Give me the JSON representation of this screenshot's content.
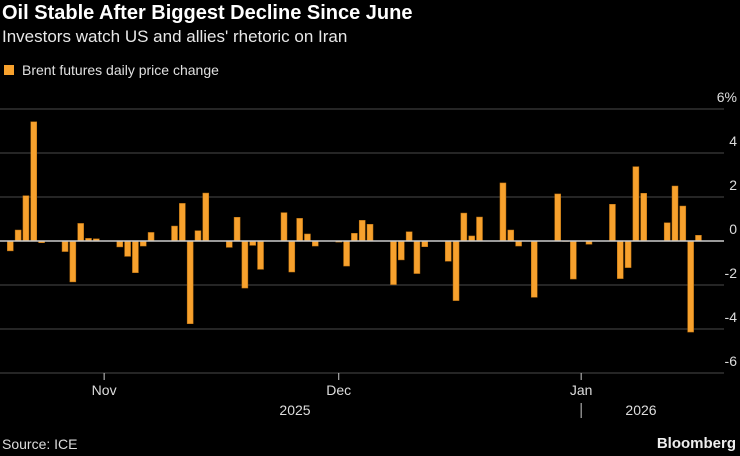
{
  "header": {
    "title": "Oil Stable After Biggest Decline Since June",
    "subtitle": "Investors watch US and allies' rhetoric on Iran"
  },
  "footer": {
    "source": "Source: ICE",
    "brand": "Bloomberg"
  },
  "colors": {
    "bar": "#f7a12d",
    "background": "#000000",
    "grid": "#4a4a4a",
    "zero_line": "#cccccc"
  },
  "chart_data": {
    "type": "bar",
    "title": "Oil Stable After Biggest Decline Since June",
    "subtitle": "Investors watch US and allies' rhetoric on Iran",
    "legend": {
      "position": "top-left",
      "entries": [
        "Brent futures daily price change"
      ]
    },
    "series": [
      {
        "name": "Brent futures daily price change",
        "points": [
          [
            "2025-10-20",
            -0.45
          ],
          [
            "2025-10-21",
            0.5
          ],
          [
            "2025-10-22",
            2.06
          ],
          [
            "2025-10-23",
            5.42
          ],
          [
            "2025-10-24",
            -0.08
          ],
          [
            "2025-10-27",
            -0.48
          ],
          [
            "2025-10-28",
            -1.86
          ],
          [
            "2025-10-29",
            0.8
          ],
          [
            "2025-10-30",
            0.12
          ],
          [
            "2025-10-31",
            0.1
          ],
          [
            "2025-11-03",
            -0.27
          ],
          [
            "2025-11-04",
            -0.7
          ],
          [
            "2025-11-05",
            -1.44
          ],
          [
            "2025-11-06",
            -0.23
          ],
          [
            "2025-11-07",
            0.39
          ],
          [
            "2025-11-10",
            0.68
          ],
          [
            "2025-11-11",
            1.71
          ],
          [
            "2025-11-12",
            -3.76
          ],
          [
            "2025-11-13",
            0.47
          ],
          [
            "2025-11-14",
            2.18
          ],
          [
            "2025-11-17",
            -0.29
          ],
          [
            "2025-11-18",
            1.08
          ],
          [
            "2025-11-19",
            -2.14
          ],
          [
            "2025-11-20",
            -0.2
          ],
          [
            "2025-11-21",
            -1.29
          ],
          [
            "2025-11-24",
            1.29
          ],
          [
            "2025-11-25",
            -1.41
          ],
          [
            "2025-11-26",
            1.03
          ],
          [
            "2025-11-27",
            0.32
          ],
          [
            "2025-11-28",
            -0.23
          ],
          [
            "2025-12-01",
            -0.05
          ],
          [
            "2025-12-02",
            -1.14
          ],
          [
            "2025-12-03",
            0.35
          ],
          [
            "2025-12-04",
            0.94
          ],
          [
            "2025-12-05",
            0.76
          ],
          [
            "2025-12-08",
            -1.98
          ],
          [
            "2025-12-09",
            -0.86
          ],
          [
            "2025-12-10",
            0.42
          ],
          [
            "2025-12-11",
            -1.48
          ],
          [
            "2025-12-12",
            -0.26
          ],
          [
            "2025-12-15",
            -0.92
          ],
          [
            "2025-12-16",
            -2.71
          ],
          [
            "2025-12-17",
            1.27
          ],
          [
            "2025-12-18",
            0.23
          ],
          [
            "2025-12-19",
            1.09
          ],
          [
            "2025-12-22",
            2.64
          ],
          [
            "2025-12-23",
            0.5
          ],
          [
            "2025-12-24",
            -0.23
          ],
          [
            "2025-12-26",
            -2.56
          ],
          [
            "2025-12-29",
            2.14
          ],
          [
            "2025-12-30",
            0.0
          ],
          [
            "2025-12-31",
            -1.73
          ],
          [
            "2026-01-02",
            -0.15
          ],
          [
            "2026-01-05",
            1.67
          ],
          [
            "2026-01-06",
            -1.71
          ],
          [
            "2026-01-07",
            -1.21
          ],
          [
            "2026-01-08",
            3.38
          ],
          [
            "2026-01-09",
            2.17
          ],
          [
            "2026-01-12",
            0.83
          ],
          [
            "2026-01-13",
            2.5
          ],
          [
            "2026-01-14",
            1.59
          ],
          [
            "2026-01-15",
            -4.14
          ],
          [
            "2026-01-16",
            0.26
          ]
        ]
      }
    ],
    "ylim": [
      -6,
      6
    ],
    "yticks": [
      "6%",
      "4",
      "2",
      "0",
      "-2",
      "-4",
      "-6"
    ],
    "ytick_values": [
      6,
      4,
      2,
      0,
      -2,
      -4,
      -6
    ],
    "y_axis_side": "right",
    "xticks": [
      {
        "label": "Nov",
        "date": "2025-11-01"
      },
      {
        "label": "Dec",
        "date": "2025-12-01"
      },
      {
        "label": "Jan",
        "date": "2026-01-01"
      }
    ],
    "year_labels": [
      {
        "label": "2025"
      },
      {
        "label": "2026"
      }
    ],
    "grid": true
  }
}
